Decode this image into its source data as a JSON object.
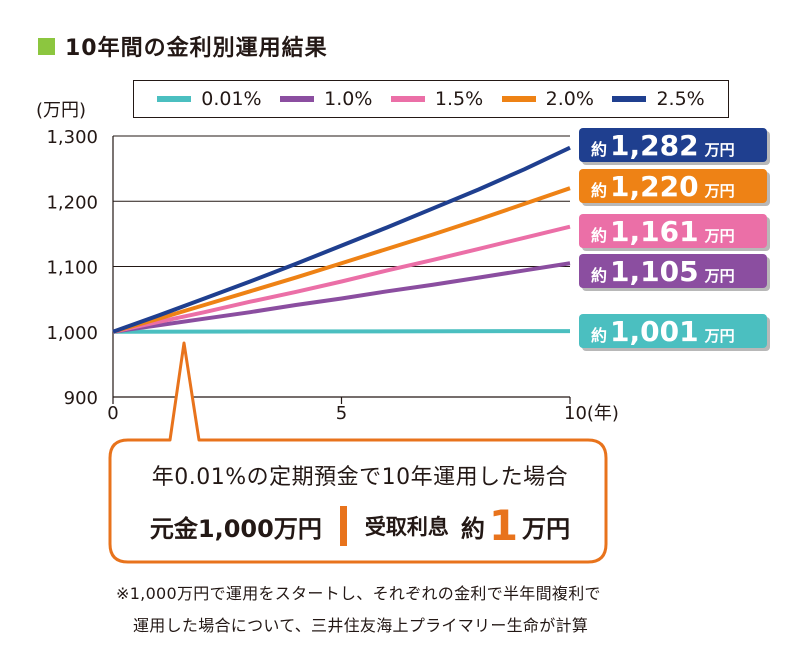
{
  "title": "10年間の金利別運用結果",
  "colors": {
    "title_square": "#8cc63f",
    "callout_border": "#e8731c",
    "accent_orange": "#e8731c",
    "series": [
      "#4bbfc0",
      "#8b4ea0",
      "#eb6fa7",
      "#ee8215",
      "#1f3f8f"
    ]
  },
  "unit_label": "(万円)",
  "chart_data": {
    "type": "line",
    "xlabel": "",
    "x_ticks": [
      "0",
      "5",
      "10(年)"
    ],
    "xlim": [
      0,
      10
    ],
    "ylabel": "(万円)",
    "y_ticks": [
      "900",
      "1,000",
      "1,100",
      "1,200",
      "1,300"
    ],
    "y_tick_values": [
      900,
      1000,
      1100,
      1200,
      1300
    ],
    "ylim": [
      900,
      1300
    ],
    "grid": "horizontal",
    "series": [
      {
        "name": "0.01%",
        "x": [
          0,
          10
        ],
        "values": [
          1000,
          1001
        ],
        "end_label": [
          "約",
          "1,001",
          "万円"
        ],
        "color": "#4bbfc0"
      },
      {
        "name": "1.0%",
        "x": [
          0,
          1,
          2,
          3,
          4,
          5,
          6,
          7,
          8,
          9,
          10
        ],
        "values": [
          1000,
          1010,
          1020,
          1030,
          1041,
          1051,
          1062,
          1072,
          1083,
          1094,
          1105
        ],
        "end_label": [
          "約",
          "1,105",
          "万円"
        ],
        "color": "#8b4ea0"
      },
      {
        "name": "1.5%",
        "x": [
          0,
          1,
          2,
          3,
          4,
          5,
          6,
          7,
          8,
          9,
          10
        ],
        "values": [
          1000,
          1015,
          1030,
          1046,
          1061,
          1077,
          1094,
          1110,
          1127,
          1144,
          1161
        ],
        "end_label": [
          "約",
          "1,161",
          "万円"
        ],
        "color": "#eb6fa7"
      },
      {
        "name": "2.0%",
        "x": [
          0,
          1,
          2,
          3,
          4,
          5,
          6,
          7,
          8,
          9,
          10
        ],
        "values": [
          1000,
          1020,
          1041,
          1062,
          1083,
          1105,
          1127,
          1149,
          1172,
          1196,
          1220
        ],
        "end_label": [
          "約",
          "1,220",
          "万円"
        ],
        "color": "#ee8215"
      },
      {
        "name": "2.5%",
        "x": [
          0,
          1,
          2,
          3,
          4,
          5,
          6,
          7,
          8,
          9,
          10
        ],
        "values": [
          1000,
          1025,
          1051,
          1077,
          1104,
          1132,
          1160,
          1189,
          1218,
          1249,
          1282
        ],
        "end_label": [
          "約",
          "1,282",
          "万円"
        ],
        "color": "#1f3f8f"
      }
    ]
  },
  "callout": {
    "line1": "年0.01%の定期預金で10年運用した場合",
    "principal": "元金1,000万円",
    "interest_label": "受取利息",
    "interest_prefix": "約",
    "interest_value": "1",
    "interest_unit": "万円"
  },
  "note_line1": "※1,000万円で運用をスタートし、それぞれの金利で半年間複利で",
  "note_line2": "運用した場合について、三井住友海上プライマリー生命が計算"
}
